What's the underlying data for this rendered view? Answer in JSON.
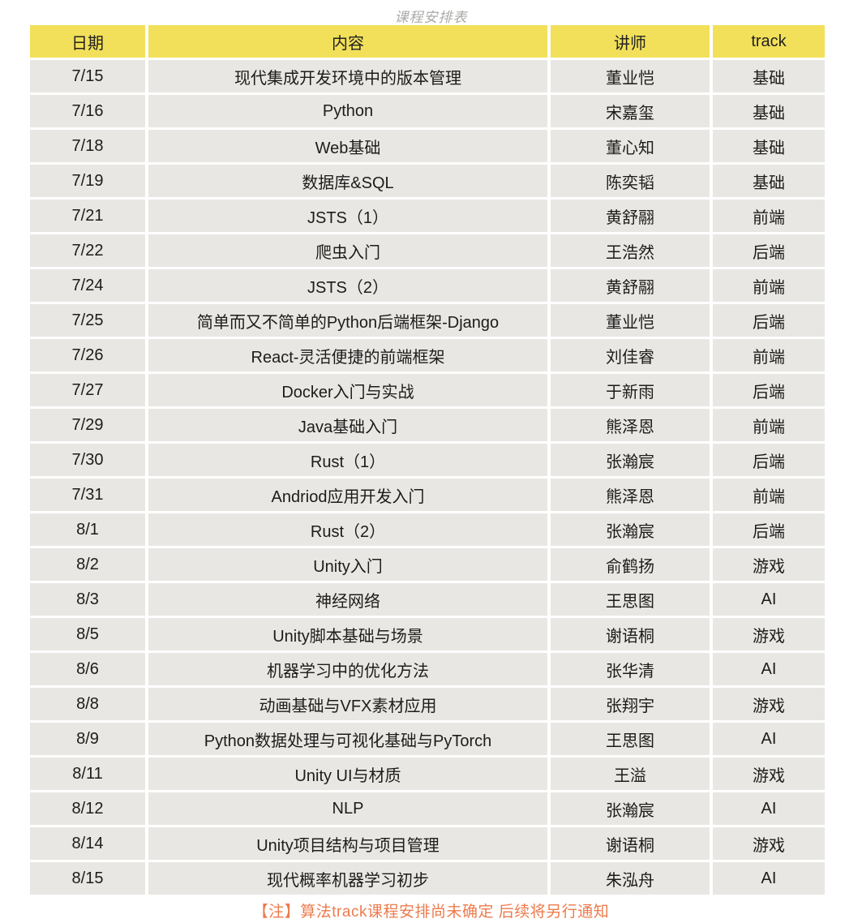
{
  "title": "课程安排表",
  "note": "【注】算法track课程安排尚未确定 后续将另行通知",
  "colors": {
    "header_bg": "#f2e05a",
    "row_bg": "#e8e7e4",
    "note_color": "#ed7b4d",
    "title_color": "#abaaa8"
  },
  "table": {
    "headers": [
      "日期",
      "内容",
      "讲师",
      "track"
    ],
    "rows": [
      {
        "date": "7/15",
        "content": "现代集成开发环境中的版本管理",
        "lecturer": "董业恺",
        "track": "基础"
      },
      {
        "date": "7/16",
        "content": "Python",
        "lecturer": "宋嘉玺",
        "track": "基础"
      },
      {
        "date": "7/18",
        "content": "Web基础",
        "lecturer": "董心知",
        "track": "基础"
      },
      {
        "date": "7/19",
        "content": "数据库&SQL",
        "lecturer": "陈奕韬",
        "track": "基础"
      },
      {
        "date": "7/21",
        "content": "JSTS（1）",
        "lecturer": "黄舒翮",
        "track": "前端"
      },
      {
        "date": "7/22",
        "content": "爬虫入门",
        "lecturer": "王浩然",
        "track": "后端"
      },
      {
        "date": "7/24",
        "content": "JSTS（2）",
        "lecturer": "黄舒翮",
        "track": "前端"
      },
      {
        "date": "7/25",
        "content": "简单而又不简单的Python后端框架-Django",
        "lecturer": "董业恺",
        "track": "后端"
      },
      {
        "date": "7/26",
        "content": "React-灵活便捷的前端框架",
        "lecturer": "刘佳睿",
        "track": "前端"
      },
      {
        "date": "7/27",
        "content": "Docker入门与实战",
        "lecturer": "于新雨",
        "track": "后端"
      },
      {
        "date": "7/29",
        "content": "Java基础入门",
        "lecturer": "熊泽恩",
        "track": "前端"
      },
      {
        "date": "7/30",
        "content": "Rust（1）",
        "lecturer": "张瀚宸",
        "track": "后端"
      },
      {
        "date": "7/31",
        "content": "Andriod应用开发入门",
        "lecturer": "熊泽恩",
        "track": "前端"
      },
      {
        "date": "8/1",
        "content": "Rust（2）",
        "lecturer": "张瀚宸",
        "track": "后端"
      },
      {
        "date": "8/2",
        "content": "Unity入门",
        "lecturer": "俞鹤扬",
        "track": "游戏"
      },
      {
        "date": "8/3",
        "content": "神经网络",
        "lecturer": "王思图",
        "track": "AI"
      },
      {
        "date": "8/5",
        "content": "Unity脚本基础与场景",
        "lecturer": "谢语桐",
        "track": "游戏"
      },
      {
        "date": "8/6",
        "content": "机器学习中的优化方法",
        "lecturer": "张华清",
        "track": "AI"
      },
      {
        "date": "8/8",
        "content": "动画基础与VFX素材应用",
        "lecturer": "张翔宇",
        "track": "游戏"
      },
      {
        "date": "8/9",
        "content": "Python数据处理与可视化基础与PyTorch",
        "lecturer": "王思图",
        "track": "AI"
      },
      {
        "date": "8/11",
        "content": "Unity UI与材质",
        "lecturer": "王溢",
        "track": "游戏"
      },
      {
        "date": "8/12",
        "content": "NLP",
        "lecturer": "张瀚宸",
        "track": "AI"
      },
      {
        "date": "8/14",
        "content": "Unity项目结构与项目管理",
        "lecturer": "谢语桐",
        "track": "游戏"
      },
      {
        "date": "8/15",
        "content": "现代概率机器学习初步",
        "lecturer": "朱泓舟",
        "track": "AI"
      }
    ]
  }
}
